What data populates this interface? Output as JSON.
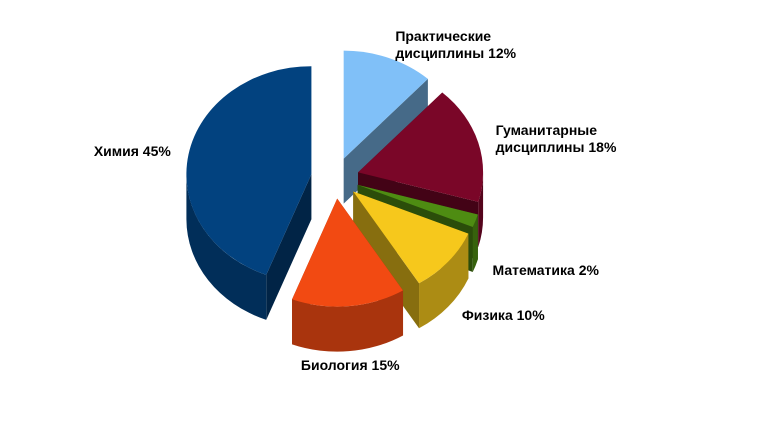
{
  "chart_data": {
    "type": "pie",
    "categories": [
      "Практические дисциплины",
      "Гуманитарные дисциплины",
      "Математика",
      "Физика",
      "Биология",
      "Химия"
    ],
    "values": [
      12,
      18,
      2,
      10,
      15,
      45
    ],
    "value_labels": [
      "12%",
      "18%",
      "2%",
      "10%",
      "15%",
      "45%"
    ],
    "colors": [
      "#80c0f8",
      "#7a0628",
      "#4e8c12",
      "#f6c81c",
      "#f24a12",
      "#02427f"
    ]
  }
}
